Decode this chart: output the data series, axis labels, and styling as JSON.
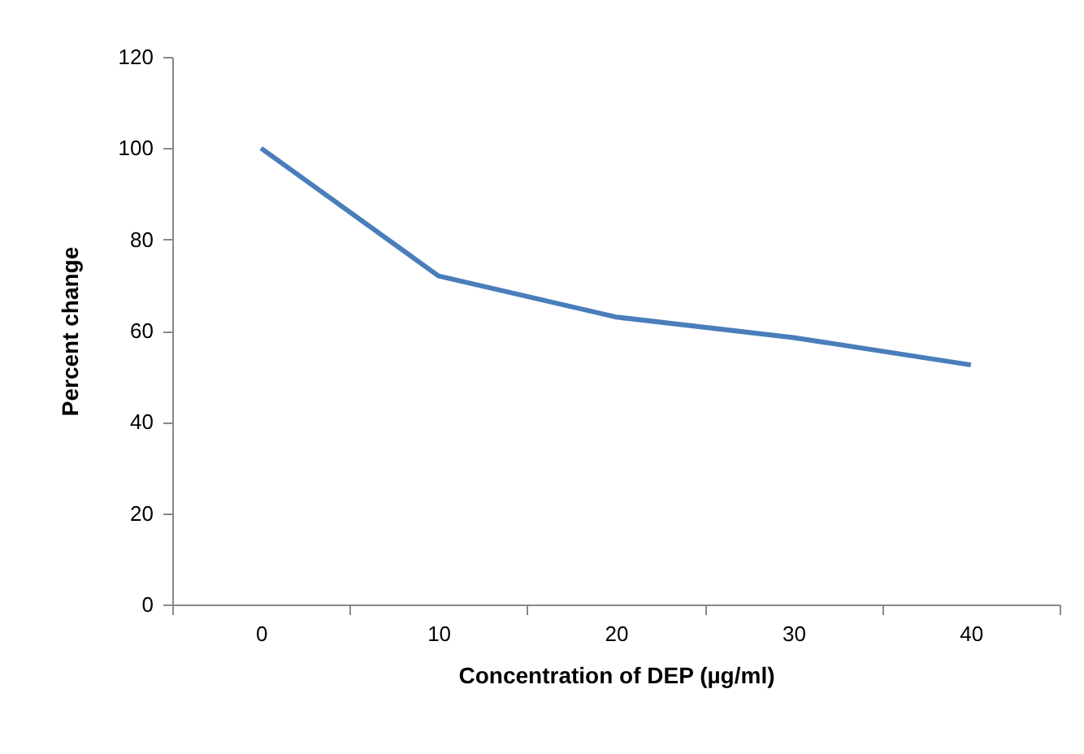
{
  "chart_data": {
    "type": "line",
    "xlabel": "Concentration of DEP (µg/ml)",
    "ylabel": "Percent change",
    "categories": [
      "0",
      "10",
      "20",
      "30",
      "40"
    ],
    "series": [
      {
        "color": "#4a7ebb",
        "values": [
          100,
          72,
          63,
          58.5,
          52.5
        ]
      }
    ],
    "ylim": [
      0,
      120
    ],
    "yticks": [
      0,
      20,
      40,
      60,
      80,
      100,
      120
    ],
    "grid": false,
    "legend": false,
    "marker": "none",
    "line_style": "solid"
  }
}
